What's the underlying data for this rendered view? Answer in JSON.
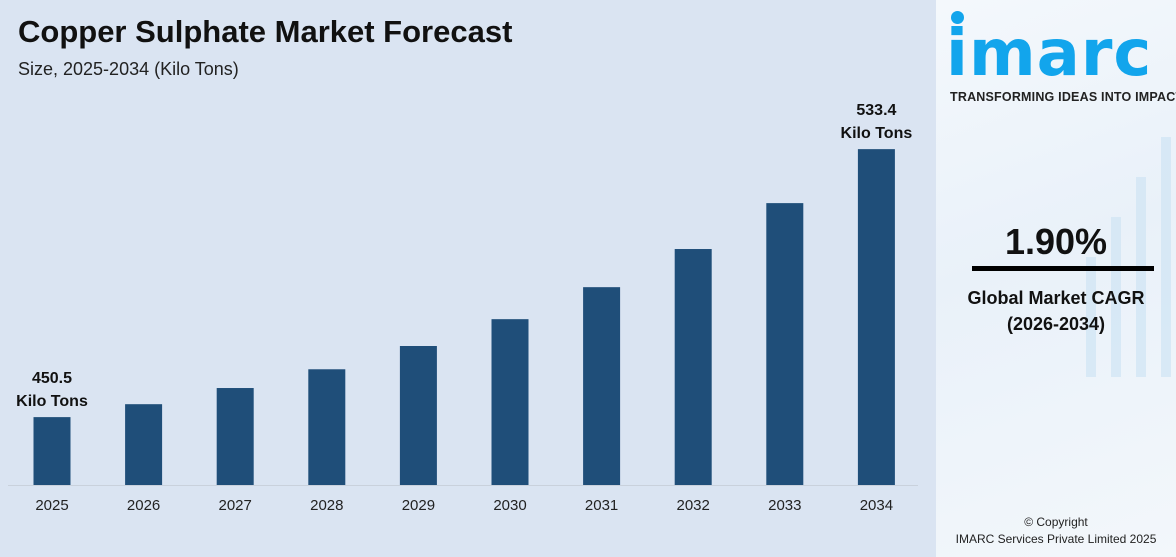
{
  "header": {
    "title": "Copper Sulphate Market Forecast",
    "subtitle": "Size, 2025-2034 (Kilo Tons)"
  },
  "chart_data": {
    "type": "bar",
    "title": "Copper Sulphate Market Forecast",
    "subtitle": "Size, 2025-2034 (Kilo Tons)",
    "xlabel": "",
    "ylabel": "",
    "categories": [
      "2025",
      "2026",
      "2027",
      "2028",
      "2029",
      "2030",
      "2031",
      "2032",
      "2033",
      "2034"
    ],
    "values": [
      450.5,
      454.5,
      459.5,
      465.3,
      472.5,
      480.8,
      490.7,
      502.5,
      516.7,
      533.4
    ],
    "ylim": [
      429.5,
      548.6
    ],
    "y_axis_visible": false,
    "grid": false,
    "bar_color": "#1f4e79",
    "data_labels": [
      {
        "category": "2025",
        "value": "450.5",
        "unit": "Kilo Tons"
      },
      {
        "category": "2034",
        "value": "533.4",
        "unit": "Kilo Tons"
      }
    ]
  },
  "sidebar": {
    "logo": "imarc",
    "tagline": "TRANSFORMING IDEAS INTO IMPACT",
    "cagr_value": "1.90%",
    "cagr_label": "Global Market CAGR",
    "cagr_period": "(2026-2034)",
    "copyright": "© Copyright",
    "copyright_owner": "IMARC Services Private Limited 2025",
    "brand_color": "#12a5ec"
  }
}
